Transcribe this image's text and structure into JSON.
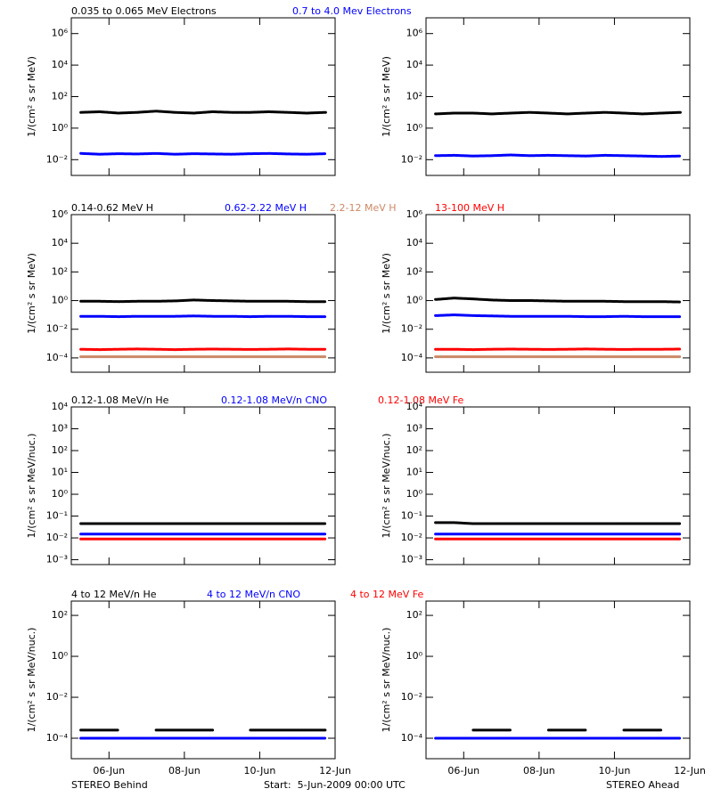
{
  "chart_data": [
    {
      "type": "scatter",
      "log": true,
      "ylabel": "1/(cm² s sr MeV)",
      "ylim": [
        0.001,
        10000000
      ],
      "yticks": [
        {
          "value": 0.01,
          "label": "10⁻²"
        },
        {
          "value": 1,
          "label": "10⁰"
        },
        {
          "value": 100,
          "label": "10²"
        },
        {
          "value": 10000,
          "label": "10⁴"
        },
        {
          "value": 1000000,
          "label": "10⁶"
        }
      ],
      "series": [
        {
          "name": "0.035 to 0.065 MeV Electrons",
          "color": "#000000",
          "behind": [
            10,
            11,
            9,
            10,
            12,
            10,
            9,
            11,
            10,
            10,
            11,
            10,
            9,
            10
          ],
          "ahead": [
            8,
            9,
            9,
            8,
            9,
            10,
            9,
            8,
            9,
            10,
            9,
            8,
            9,
            10
          ]
        },
        {
          "name": "0.7 to 4.0 Mev Electrons",
          "color": "#0000ff",
          "behind": [
            0.025,
            0.022,
            0.024,
            0.023,
            0.025,
            0.022,
            0.024,
            0.023,
            0.022,
            0.024,
            0.025,
            0.023,
            0.022,
            0.024
          ],
          "ahead": [
            0.018,
            0.019,
            0.017,
            0.018,
            0.02,
            0.018,
            0.019,
            0.018,
            0.017,
            0.019,
            0.018,
            0.017,
            0.016,
            0.017
          ]
        }
      ]
    },
    {
      "type": "scatter",
      "log": true,
      "ylabel": "1/(cm² s sr MeV)",
      "ylim": [
        1e-05,
        1000000
      ],
      "yticks": [
        {
          "value": 0.0001,
          "label": "10⁻⁴"
        },
        {
          "value": 0.01,
          "label": "10⁻²"
        },
        {
          "value": 1,
          "label": "10⁰"
        },
        {
          "value": 100,
          "label": "10²"
        },
        {
          "value": 10000,
          "label": "10⁴"
        },
        {
          "value": 1000000,
          "label": "10⁶"
        }
      ],
      "series": [
        {
          "name": "0.14-0.62 MeV H",
          "color": "#000000",
          "behind": [
            0.9,
            0.9,
            0.85,
            0.9,
            0.9,
            0.95,
            1.1,
            1.0,
            0.95,
            0.9,
            0.9,
            0.9,
            0.85,
            0.85
          ],
          "ahead": [
            1.2,
            1.5,
            1.3,
            1.1,
            1.0,
            1.0,
            0.95,
            0.9,
            0.9,
            0.9,
            0.85,
            0.85,
            0.85,
            0.8
          ]
        },
        {
          "name": "0.62-2.22 MeV H",
          "color": "#0000ff",
          "behind": [
            0.08,
            0.08,
            0.075,
            0.08,
            0.08,
            0.08,
            0.085,
            0.08,
            0.08,
            0.075,
            0.08,
            0.08,
            0.075,
            0.075
          ],
          "ahead": [
            0.09,
            0.1,
            0.09,
            0.085,
            0.08,
            0.08,
            0.08,
            0.08,
            0.075,
            0.075,
            0.08,
            0.075,
            0.075,
            0.075
          ]
        },
        {
          "name": "2.2-12 MeV H",
          "color": "#cc8866",
          "behind": [
            0.00012,
            0.00012,
            0.00012,
            0.00012,
            0.00012,
            0.00012,
            0.00012,
            0.00012,
            0.00012,
            0.00012,
            0.00012,
            0.00012,
            0.00012,
            0.00012
          ],
          "ahead": [
            0.00012,
            0.00012,
            0.00012,
            0.00012,
            0.00012,
            0.00012,
            0.00012,
            0.00012,
            0.00012,
            0.00012,
            0.00012,
            0.00012,
            0.00012,
            0.00012
          ]
        },
        {
          "name": "13-100 MeV H",
          "color": "#ff0000",
          "behind": [
            0.0004,
            0.00038,
            0.0004,
            0.00042,
            0.0004,
            0.00038,
            0.0004,
            0.00041,
            0.0004,
            0.00039,
            0.0004,
            0.00042,
            0.0004,
            0.0004
          ],
          "ahead": [
            0.0004,
            0.0004,
            0.00038,
            0.0004,
            0.00041,
            0.0004,
            0.00039,
            0.0004,
            0.00042,
            0.0004,
            0.00039,
            0.0004,
            0.0004,
            0.00041
          ]
        }
      ]
    },
    {
      "type": "scatter",
      "log": true,
      "ylabel": "1/(cm² s sr MeV/nuc.)",
      "ylim": [
        0.0006,
        10000
      ],
      "yticks": [
        {
          "value": 0.001,
          "label": "10⁻³"
        },
        {
          "value": 0.01,
          "label": "10⁻²"
        },
        {
          "value": 0.1,
          "label": "10⁻¹"
        },
        {
          "value": 1,
          "label": "10⁰"
        },
        {
          "value": 10,
          "label": "10¹"
        },
        {
          "value": 100,
          "label": "10²"
        },
        {
          "value": 1000,
          "label": "10³"
        },
        {
          "value": 10000,
          "label": "10⁴"
        }
      ],
      "series": [
        {
          "name": "0.12-1.08 MeV/n He",
          "color": "#000000",
          "behind": [
            0.045,
            0.045,
            0.045,
            0.045,
            0.045,
            0.045,
            0.045,
            0.045,
            0.045,
            0.045,
            0.045,
            0.045,
            0.045,
            0.045
          ],
          "ahead": [
            0.05,
            0.05,
            0.045,
            0.045,
            0.045,
            0.045,
            0.045,
            0.045,
            0.045,
            0.045,
            0.045,
            0.045,
            0.045,
            0.045
          ]
        },
        {
          "name": "0.12-1.08 MeV/n CNO",
          "color": "#0000ff",
          "behind": [
            0.015,
            0.015,
            0.015,
            0.015,
            0.015,
            0.015,
            0.015,
            0.015,
            0.015,
            0.015,
            0.015,
            0.015,
            0.015,
            0.015
          ],
          "ahead": [
            0.015,
            0.015,
            0.015,
            0.015,
            0.015,
            0.015,
            0.015,
            0.015,
            0.015,
            0.015,
            0.015,
            0.015,
            0.015,
            0.015
          ]
        },
        {
          "name": "0.12-1.08 MeV Fe",
          "color": "#ff0000",
          "behind": [
            0.009,
            0.009,
            0.009,
            0.009,
            0.009,
            0.009,
            0.009,
            0.009,
            0.009,
            0.009,
            0.009,
            0.009,
            0.009,
            0.009
          ],
          "ahead": [
            0.009,
            0.009,
            0.009,
            0.009,
            0.009,
            0.009,
            0.009,
            0.009,
            0.009,
            0.009,
            0.009,
            0.009,
            0.009,
            0.009
          ]
        }
      ]
    },
    {
      "type": "scatter",
      "log": true,
      "ylabel": "1/(cm² s sr MeV/nuc.)",
      "ylim": [
        1e-05,
        500
      ],
      "yticks": [
        {
          "value": 0.0001,
          "label": "10⁻⁴"
        },
        {
          "value": 0.01,
          "label": "10⁻²"
        },
        {
          "value": 1,
          "label": "10⁰"
        },
        {
          "value": 100,
          "label": "10²"
        }
      ],
      "series": [
        {
          "name": "4 to 12 MeV/n He",
          "color": "#000000",
          "behind": [
            0.00025,
            0.00025,
            0.00025,
            null,
            0.00025,
            0.00025,
            0.00025,
            0.00025,
            null,
            0.00025,
            0.00025,
            0.00025,
            0.00025,
            0.00025
          ],
          "ahead": [
            null,
            null,
            0.00025,
            0.00025,
            0.00025,
            null,
            0.00025,
            0.00025,
            0.00025,
            null,
            0.00025,
            0.00025,
            0.00025,
            null
          ]
        },
        {
          "name": "4 to 12 MeV/n CNO",
          "color": "#0000ff",
          "behind": [
            0.0001,
            0.0001,
            0.0001,
            0.0001,
            0.0001,
            0.0001,
            0.0001,
            0.0001,
            0.0001,
            0.0001,
            0.0001,
            0.0001,
            0.0001,
            0.0001
          ],
          "ahead": [
            0.0001,
            0.0001,
            0.0001,
            0.0001,
            0.0001,
            0.0001,
            0.0001,
            0.0001,
            0.0001,
            0.0001,
            0.0001,
            0.0001,
            0.0001,
            0.0001
          ]
        },
        {
          "name": "4 to 12 MeV Fe",
          "color": "#ff0000",
          "behind": [
            null,
            null,
            null,
            null,
            null,
            null,
            null,
            null,
            null,
            null,
            null,
            null,
            null,
            null
          ],
          "ahead": [
            null,
            null,
            null,
            null,
            null,
            null,
            null,
            null,
            null,
            null,
            null,
            null,
            null,
            null
          ]
        }
      ]
    }
  ],
  "x": [
    5.25,
    5.75,
    6.25,
    6.75,
    7.25,
    7.75,
    8.25,
    8.75,
    9.25,
    9.75,
    10.25,
    10.75,
    11.25,
    11.75
  ],
  "xlim": [
    5,
    12
  ],
  "xticks": [
    {
      "value": 6,
      "label": "06-Jun"
    },
    {
      "value": 8,
      "label": "08-Jun"
    },
    {
      "value": 10,
      "label": "10-Jun"
    },
    {
      "value": 12,
      "label": "12-Jun"
    }
  ],
  "footer": {
    "left": "STEREO Behind",
    "center": "Start:  5-Jun-2009 00:00 UTC",
    "right": "STEREO Ahead"
  }
}
